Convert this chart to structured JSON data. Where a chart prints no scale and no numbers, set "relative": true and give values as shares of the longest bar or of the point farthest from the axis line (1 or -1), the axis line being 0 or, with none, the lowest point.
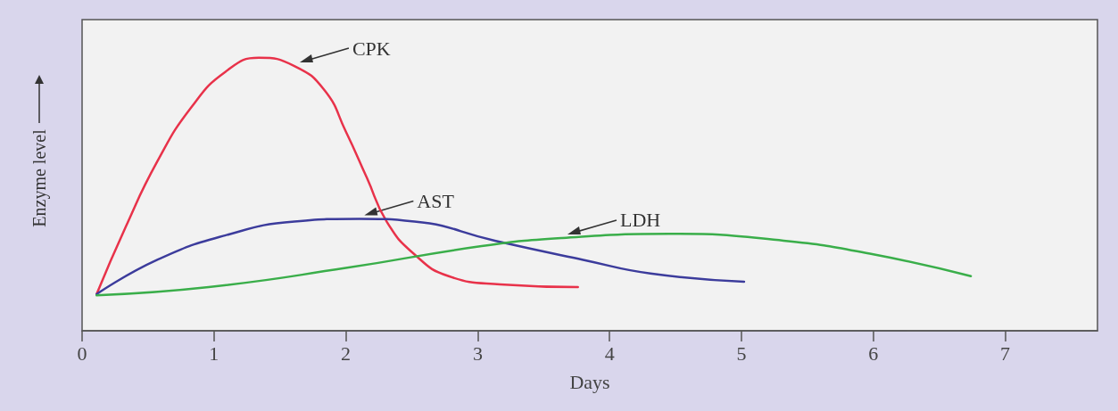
{
  "chart_data": {
    "type": "line",
    "relative": true,
    "xlabel": "Days",
    "ylabel": "Enzyme level",
    "xlim": [
      0,
      7.7
    ],
    "xticks": [
      0,
      1,
      2,
      3,
      4,
      5,
      6,
      7
    ],
    "grid": false,
    "legend": false,
    "marker": "none",
    "line_style": "solid",
    "series": [
      {
        "name": "CPK",
        "color": "#e8324a",
        "x": [
          0.11,
          0.33,
          0.57,
          0.83,
          1.09,
          1.34,
          1.61,
          1.84,
          2.0,
          2.16,
          2.31,
          2.52,
          2.78,
          3.17,
          3.76
        ],
        "values": [
          0.134,
          0.38,
          0.62,
          0.82,
          0.95,
          1.0,
          0.97,
          0.88,
          0.73,
          0.56,
          0.4,
          0.28,
          0.2,
          0.17,
          0.16
        ]
      },
      {
        "name": "AST",
        "color": "#3c3c9c",
        "x": [
          0.11,
          0.57,
          1.09,
          1.61,
          2.1,
          2.52,
          3.13,
          3.8,
          4.31,
          5.02
        ],
        "values": [
          0.134,
          0.26,
          0.35,
          0.4,
          0.41,
          0.4,
          0.33,
          0.26,
          0.21,
          0.18
        ]
      },
      {
        "name": "LDH",
        "color": "#3aae4a",
        "x": [
          0.11,
          0.96,
          2.0,
          3.03,
          3.64,
          4.45,
          5.32,
          6.0,
          6.74
        ],
        "values": [
          0.13,
          0.16,
          0.23,
          0.31,
          0.34,
          0.355,
          0.33,
          0.28,
          0.2
        ]
      }
    ]
  }
}
